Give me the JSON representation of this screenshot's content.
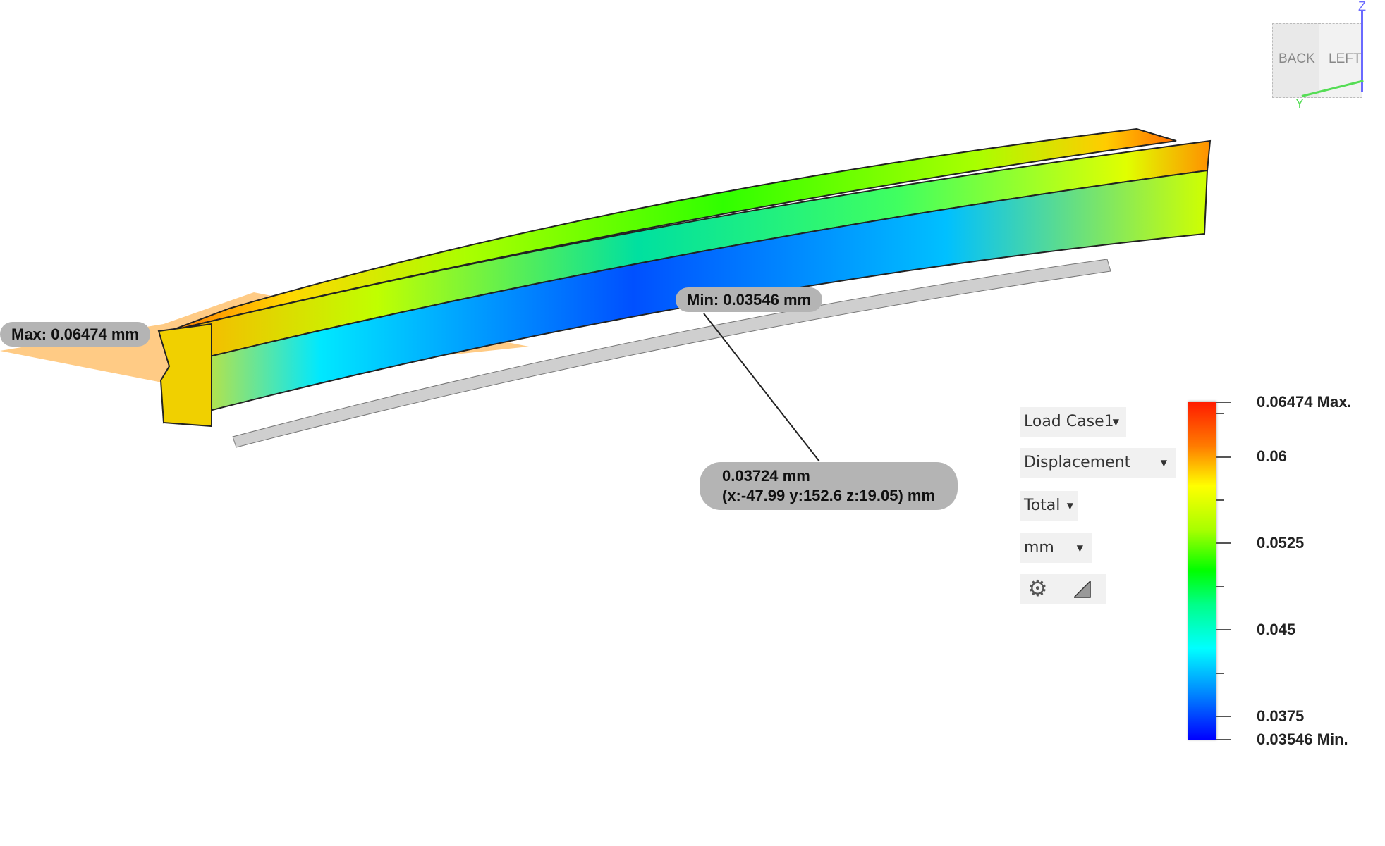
{
  "viewcube": {
    "back_label": "BACK",
    "left_label": "LEFT",
    "axis_z": "Z",
    "axis_y": "Y",
    "axis_colors": {
      "z": "#6a6aff",
      "y": "#55dd55"
    }
  },
  "callouts": {
    "max": "Max: 0.06474 mm",
    "min": "Min: 0.03546 mm",
    "probe_value": "0.03724 mm",
    "probe_coords": "(x:-47.99 y:152.6 z:19.05) mm"
  },
  "controls": {
    "load_case": "Load Case1",
    "result_type": "Displacement",
    "component": "Total",
    "units": "mm",
    "icons": [
      "gear-icon",
      "triangle-scale-icon"
    ]
  },
  "legend": {
    "labels": [
      "0.06474 Max.",
      "0.06",
      "0.0525",
      "0.045",
      "0.0375",
      "0.03546 Min."
    ],
    "colors": {
      "max": "#ff1a00",
      "mid": "#00ff00",
      "min": "#0000ff"
    }
  }
}
